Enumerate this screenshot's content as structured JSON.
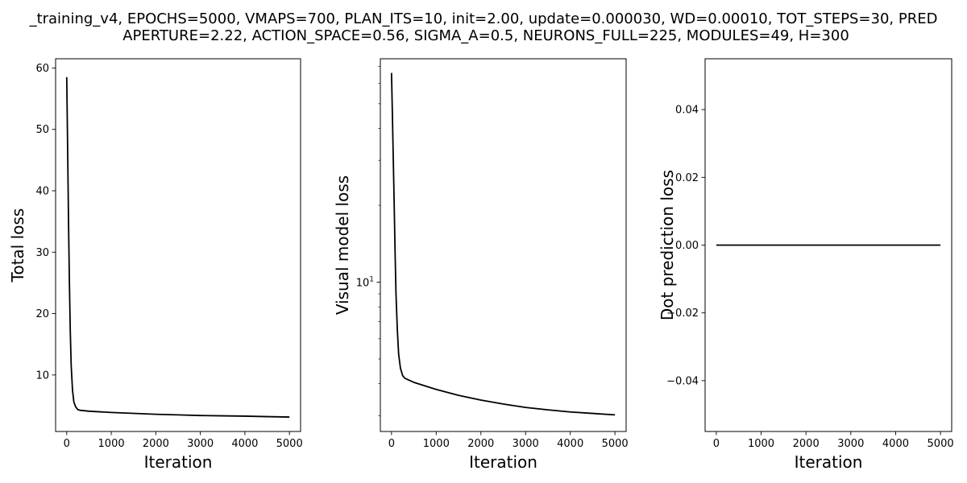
{
  "figure": {
    "title_line1": "_training_v4, EPOCHS=5000, VMAPS=700, PLAN_ITS=10, init=2.00, update=0.000030, WD=0.00010, TOT_STEPS=30, PRED",
    "title_line2": "APERTURE=2.22, ACTION_SPACE=0.56, SIGMA_A=0.5, NEURONS_FULL=225, MODULES=49, H=300"
  },
  "chart_data": [
    {
      "type": "line",
      "xlabel": "Iteration",
      "ylabel": "Total loss",
      "yscale": "linear",
      "xlim": [
        -250,
        5250
      ],
      "ylim": [
        0.8,
        61.5
      ],
      "xticks": [
        0,
        1000,
        2000,
        3000,
        4000,
        5000
      ],
      "xtick_labels": [
        "0",
        "1000",
        "2000",
        "3000",
        "4000",
        "5000"
      ],
      "yticks": [
        10,
        20,
        30,
        40,
        50,
        60
      ],
      "ytick_labels": [
        "10",
        "20",
        "30",
        "40",
        "50",
        "60"
      ],
      "grid": false,
      "line_color": "#000000",
      "x": [
        0,
        20,
        40,
        60,
        80,
        100,
        130,
        160,
        200,
        250,
        300,
        500,
        1000,
        1500,
        2000,
        2500,
        3000,
        3500,
        4000,
        4500,
        5000
      ],
      "y": [
        58.5,
        47,
        35,
        25,
        17,
        11.5,
        7.5,
        5.6,
        4.8,
        4.35,
        4.25,
        4.1,
        3.9,
        3.75,
        3.6,
        3.5,
        3.4,
        3.35,
        3.3,
        3.22,
        3.15
      ]
    },
    {
      "type": "line",
      "xlabel": "Iteration",
      "ylabel": "Visual model loss",
      "yscale": "log",
      "xlim": [
        -250,
        5250
      ],
      "ylim": [
        2.6,
        75
      ],
      "xticks": [
        0,
        1000,
        2000,
        3000,
        4000,
        5000
      ],
      "xtick_labels": [
        "0",
        "1000",
        "2000",
        "3000",
        "4000",
        "5000"
      ],
      "yticks_major": [
        10
      ],
      "ytick_major_labels": [
        "10^1"
      ],
      "yticks_minor": [
        3,
        4,
        5,
        6,
        7,
        8,
        9,
        20,
        30,
        40,
        50,
        60,
        70
      ],
      "grid": false,
      "line_color": "#000000",
      "x": [
        0,
        20,
        40,
        60,
        80,
        100,
        130,
        160,
        200,
        250,
        300,
        500,
        1000,
        1500,
        2000,
        2500,
        3000,
        3500,
        4000,
        4500,
        5000
      ],
      "y": [
        66,
        45,
        30,
        20,
        13,
        9,
        6.5,
        5.2,
        4.6,
        4.3,
        4.2,
        4.05,
        3.8,
        3.6,
        3.45,
        3.33,
        3.23,
        3.16,
        3.1,
        3.06,
        3.02
      ]
    },
    {
      "type": "line",
      "xlabel": "Iteration",
      "ylabel": "Dot prediction loss",
      "yscale": "linear",
      "xlim": [
        -250,
        5250
      ],
      "ylim": [
        -0.055,
        0.055
      ],
      "xticks": [
        0,
        1000,
        2000,
        3000,
        4000,
        5000
      ],
      "xtick_labels": [
        "0",
        "1000",
        "2000",
        "3000",
        "4000",
        "5000"
      ],
      "yticks": [
        -0.04,
        -0.02,
        0.0,
        0.02,
        0.04
      ],
      "ytick_labels": [
        "−0.04",
        "−0.02",
        "0.00",
        "0.02",
        "0.04"
      ],
      "grid": false,
      "line_color": "#000000",
      "x": [
        0,
        5000
      ],
      "y": [
        0,
        0
      ]
    }
  ]
}
